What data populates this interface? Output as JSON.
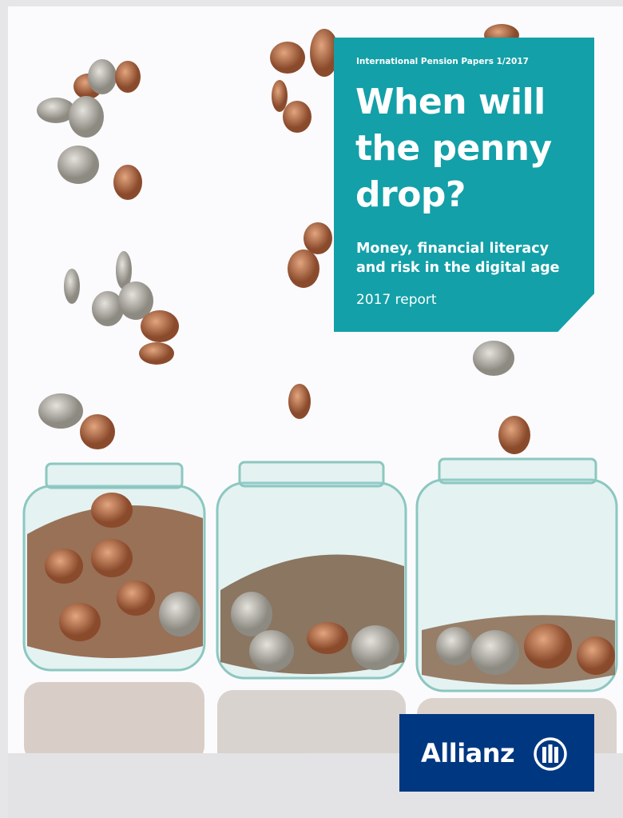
{
  "cover": {
    "series": "International Pension Papers  1/2017",
    "title_lines": [
      "When will",
      "the penny",
      "drop?"
    ],
    "subtitle_lines": [
      "Money, financial literacy",
      "and risk in the digital age"
    ],
    "edition": "2017 report",
    "logo": "Allianz"
  }
}
